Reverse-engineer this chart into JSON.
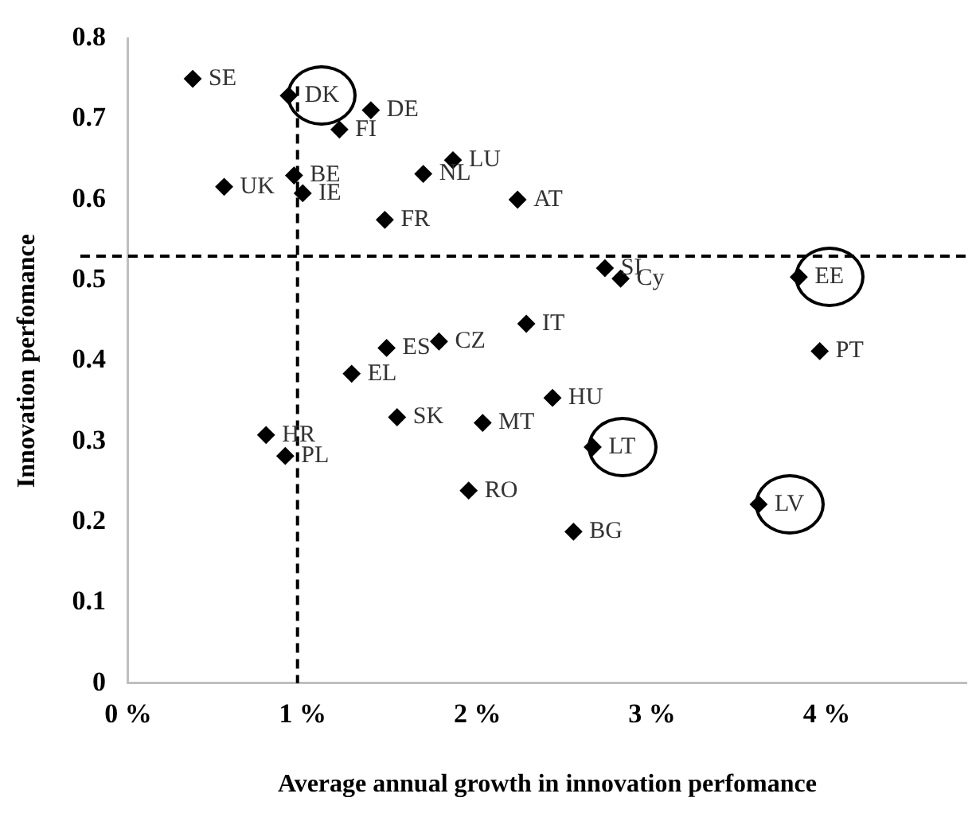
{
  "chart_data": {
    "type": "scatter",
    "xlabel": "Average annual growth in innovation perfomance",
    "ylabel": "Innovation perfomance",
    "x": [
      0.37,
      0.92,
      1.39,
      1.21,
      0.95,
      1.0,
      0.55,
      1.69,
      1.86,
      1.47,
      2.23,
      2.73,
      2.82,
      3.84,
      3.96,
      2.28,
      1.78,
      1.48,
      1.28,
      2.43,
      1.54,
      2.03,
      2.66,
      0.79,
      0.9,
      1.95,
      2.55,
      3.61
    ],
    "series": [
      {
        "color": "#000000",
        "values": [
          0.75,
          0.729,
          0.711,
          0.687,
          0.63,
          0.608,
          0.616,
          0.632,
          0.649,
          0.575,
          0.6,
          0.515,
          0.502,
          0.504,
          0.412,
          0.446,
          0.424,
          0.416,
          0.384,
          0.354,
          0.33,
          0.323,
          0.293,
          0.308,
          0.282,
          0.239,
          0.188,
          0.222
        ]
      }
    ],
    "annotations": [
      {
        "text": "SE",
        "x": 0.37,
        "y": 0.75
      },
      {
        "text": "DK",
        "x": 0.92,
        "y": 0.729
      },
      {
        "text": "DE",
        "x": 1.39,
        "y": 0.711
      },
      {
        "text": "FI",
        "x": 1.21,
        "y": 0.687
      },
      {
        "text": "BE",
        "x": 0.95,
        "y": 0.63
      },
      {
        "text": "IE",
        "x": 1.0,
        "y": 0.608
      },
      {
        "text": "UK",
        "x": 0.55,
        "y": 0.616
      },
      {
        "text": "NL",
        "x": 1.69,
        "y": 0.632
      },
      {
        "text": "LU",
        "x": 1.86,
        "y": 0.649
      },
      {
        "text": "FR",
        "x": 1.47,
        "y": 0.575
      },
      {
        "text": "AT",
        "x": 2.23,
        "y": 0.6
      },
      {
        "text": "SI",
        "x": 2.73,
        "y": 0.515
      },
      {
        "text": "Cy",
        "x": 2.82,
        "y": 0.502
      },
      {
        "text": "EE",
        "x": 3.84,
        "y": 0.504
      },
      {
        "text": "PT",
        "x": 3.96,
        "y": 0.412
      },
      {
        "text": "IT",
        "x": 2.28,
        "y": 0.446
      },
      {
        "text": "CZ",
        "x": 1.78,
        "y": 0.424
      },
      {
        "text": "ES",
        "x": 1.48,
        "y": 0.416
      },
      {
        "text": "EL",
        "x": 1.28,
        "y": 0.384
      },
      {
        "text": "HU",
        "x": 2.43,
        "y": 0.354
      },
      {
        "text": "SK",
        "x": 1.54,
        "y": 0.33
      },
      {
        "text": "MT",
        "x": 2.03,
        "y": 0.323
      },
      {
        "text": "LT",
        "x": 2.66,
        "y": 0.293
      },
      {
        "text": "HR",
        "x": 0.79,
        "y": 0.308
      },
      {
        "text": "PL",
        "x": 0.9,
        "y": 0.282
      },
      {
        "text": "RO",
        "x": 1.95,
        "y": 0.239
      },
      {
        "text": "BG",
        "x": 2.55,
        "y": 0.188
      },
      {
        "text": "LV",
        "x": 3.61,
        "y": 0.222
      }
    ],
    "xlim": [
      0,
      4.8
    ],
    "xticks": [
      {
        "value": 0,
        "label": "0 %"
      },
      {
        "value": 1,
        "label": "1 %"
      },
      {
        "value": 2,
        "label": "2 %"
      },
      {
        "value": 3,
        "label": "3 %"
      },
      {
        "value": 4,
        "label": "4 %"
      }
    ],
    "ylim": [
      0,
      0.8
    ],
    "yticks": [
      0,
      0.1,
      0.2,
      0.3,
      0.4,
      0.5,
      0.6,
      0.7,
      0.8
    ],
    "ref_lines": [
      {
        "axis": "x",
        "value": 0.97,
        "color": "#000000",
        "line_style": "dashed"
      },
      {
        "axis": "y",
        "value": 0.53,
        "color": "#000000",
        "line_style": "dashed"
      }
    ],
    "marker": "diamond",
    "grid": false,
    "legend": false
  }
}
